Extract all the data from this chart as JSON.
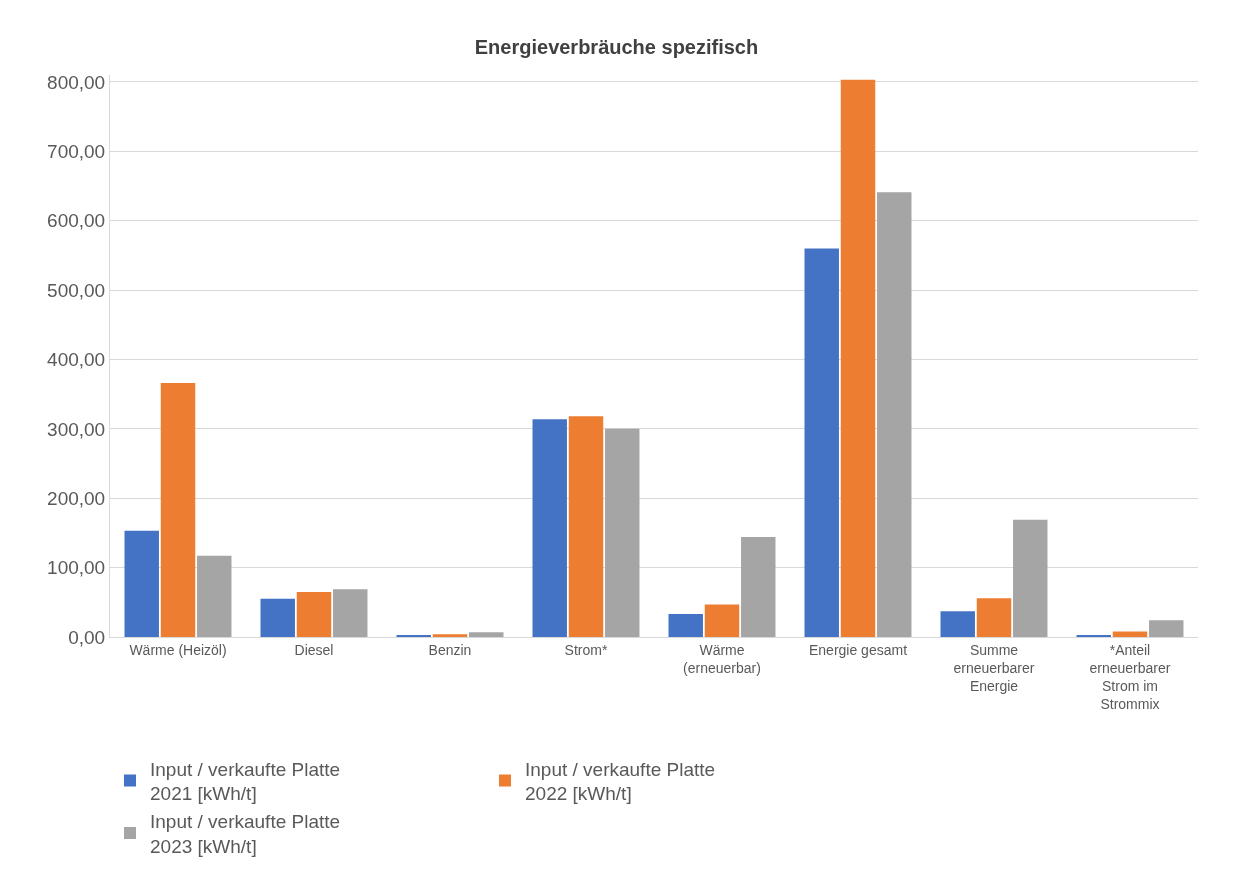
{
  "chart_data": {
    "type": "bar",
    "title": "Energieverbräuche spezifisch",
    "categories": [
      "Wärme (Heizöl)",
      "Diesel",
      "Benzin",
      "Strom*",
      "Wärme (erneuerbar)",
      "Energie gesamt",
      "Summe erneuerbarer Energie",
      "*Anteil erneuerbarer Strom im Strommix"
    ],
    "series": [
      {
        "name": "Input / verkaufte Platte 2021 [kWh/t]",
        "color": "#4472c4",
        "values": [
          153,
          55,
          3,
          314,
          33,
          560,
          37,
          3
        ]
      },
      {
        "name": "Input / verkaufte Platte 2022 [kWh/t]",
        "color": "#ed7d31",
        "values": [
          366,
          65,
          4,
          318,
          47,
          803,
          56,
          8
        ]
      },
      {
        "name": "Input / verkaufte Platte 2023 [kWh/t]",
        "color": "#a5a5a5",
        "values": [
          117,
          69,
          7,
          300,
          144,
          641,
          169,
          24
        ]
      }
    ],
    "ylim": [
      0,
      810
    ],
    "yticks": [
      {
        "value": 0,
        "label": "0,00"
      },
      {
        "value": 100,
        "label": "100,00"
      },
      {
        "value": 200,
        "label": "200,00"
      },
      {
        "value": 300,
        "label": "300,00"
      },
      {
        "value": 400,
        "label": "400,00"
      },
      {
        "value": 500,
        "label": "500,00"
      },
      {
        "value": 600,
        "label": "600,00"
      },
      {
        "value": 700,
        "label": "700,00"
      },
      {
        "value": 800,
        "label": "800,00"
      }
    ],
    "grid": "y",
    "legend": "bottom"
  }
}
